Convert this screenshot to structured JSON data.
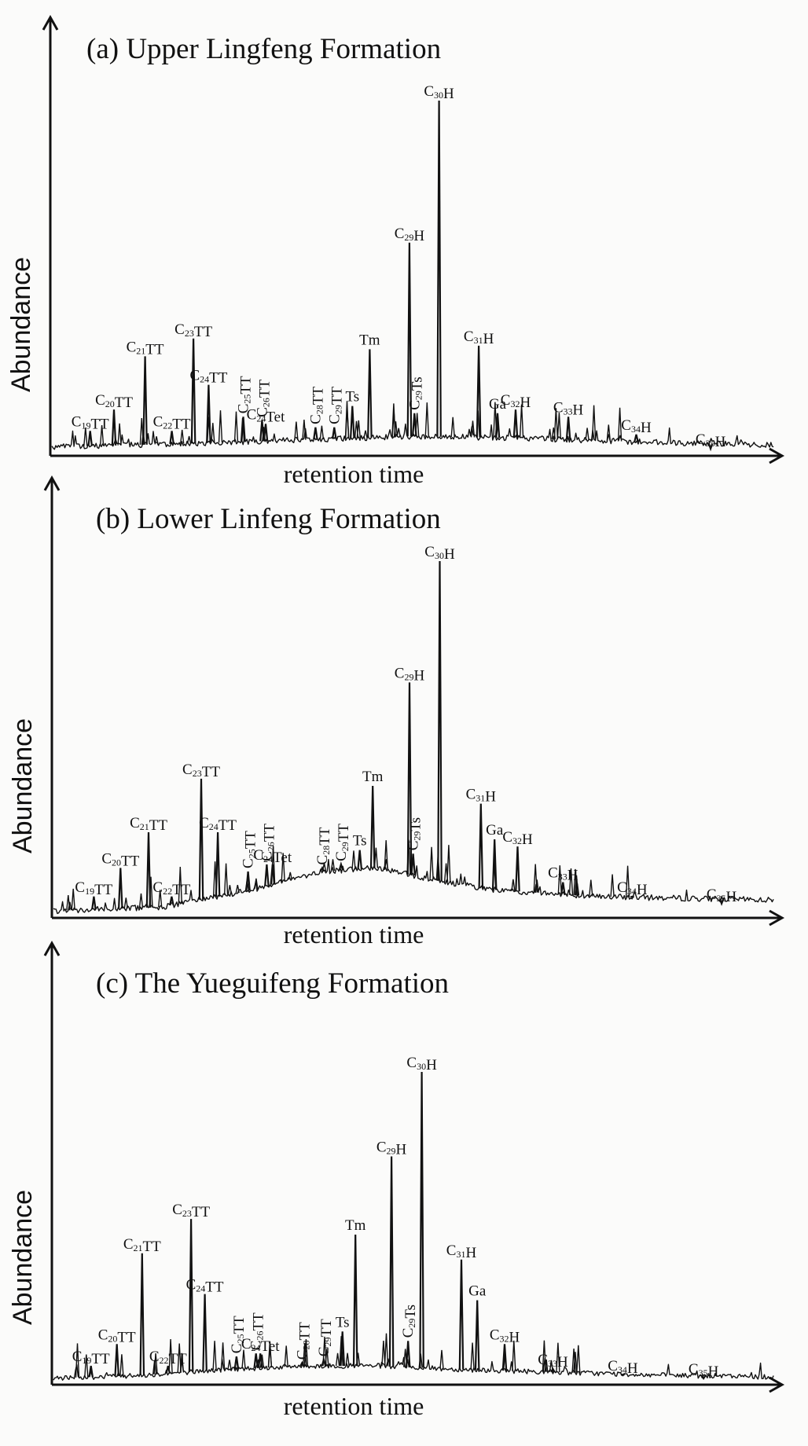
{
  "chart_data": [
    {
      "type": "line",
      "title": "(a) Upper  Lingfeng Formation",
      "xlabel": "retention time",
      "ylabel": "Abundance",
      "x_range": [
        0,
        100
      ],
      "ylim": [
        0,
        100
      ],
      "baseline": [
        [
          0,
          2.5
        ],
        [
          20,
          3.5
        ],
        [
          35,
          4.5
        ],
        [
          50,
          5.5
        ],
        [
          65,
          5
        ],
        [
          80,
          4
        ],
        [
          100,
          3
        ]
      ],
      "peaks": [
        {
          "name": "C19TT",
          "label": [
            [
              "C",
              "19",
              "TT"
            ]
          ],
          "x": 5.3,
          "y": 7
        },
        {
          "name": "C20TT",
          "label": [
            [
              "C",
              "20",
              "TT"
            ]
          ],
          "x": 8.6,
          "y": 13
        },
        {
          "name": "C21TT",
          "label": [
            [
              "C",
              "21",
              "TT"
            ]
          ],
          "x": 12.9,
          "y": 28
        },
        {
          "name": "C22TT",
          "label": [
            [
              "C",
              "22",
              "TT"
            ]
          ],
          "x": 16.6,
          "y": 7
        },
        {
          "name": "C23TT",
          "label": [
            [
              "C",
              "23",
              "TT"
            ]
          ],
          "x": 19.6,
          "y": 33
        },
        {
          "name": "C24TT",
          "label": [
            [
              "C",
              "24",
              "TT"
            ]
          ],
          "x": 21.7,
          "y": 20
        },
        {
          "name": "C25TT",
          "label": [
            [
              "C",
              "25",
              "TT"
            ]
          ],
          "rotated": true,
          "x": 26.5,
          "y": 11
        },
        {
          "name": "C26TT",
          "label": [
            [
              "C",
              "26",
              "TT"
            ]
          ],
          "rotated": true,
          "x": 29.1,
          "y": 10
        },
        {
          "name": "C24Tet",
          "label": [
            [
              "C",
              "24",
              "Tet"
            ]
          ],
          "x": 29.6,
          "y": 9
        },
        {
          "name": "C28TT",
          "label": [
            [
              "C",
              "28",
              "TT"
            ]
          ],
          "rotated": true,
          "x": 36.5,
          "y": 8
        },
        {
          "name": "C29TT",
          "label": [
            [
              "C",
              "29",
              "TT"
            ]
          ],
          "rotated": true,
          "x": 39.1,
          "y": 8
        },
        {
          "name": "Ts",
          "label": [
            [
              "",
              "",
              "Ts"
            ]
          ],
          "x": 41.6,
          "y": 14
        },
        {
          "name": "Tm",
          "label": [
            [
              "",
              "",
              "Tm"
            ]
          ],
          "x": 44.0,
          "y": 30
        },
        {
          "name": "C29H",
          "label": [
            [
              "C",
              "29",
              "H"
            ]
          ],
          "x": 49.5,
          "y": 60
        },
        {
          "name": "C29Ts",
          "label": [
            [
              "C",
              "29",
              "Ts"
            ]
          ],
          "rotated": true,
          "x": 50.2,
          "y": 12
        },
        {
          "name": "C30H",
          "label": [
            [
              "C",
              "30",
              "H"
            ]
          ],
          "x": 53.6,
          "y": 100
        },
        {
          "name": "C31H",
          "label": [
            [
              "C",
              "31",
              "H"
            ]
          ],
          "x": 59.1,
          "y": 31
        },
        {
          "name": "Ga",
          "label": [
            [
              "",
              "",
              "Ga"
            ]
          ],
          "x": 61.7,
          "y": 12
        },
        {
          "name": "C32H",
          "label": [
            [
              "C",
              "32",
              "H"
            ]
          ],
          "x": 64.2,
          "y": 13
        },
        {
          "name": "C33H",
          "label": [
            [
              "C",
              "33",
              "H"
            ]
          ],
          "x": 71.5,
          "y": 11
        },
        {
          "name": "C34H",
          "label": [
            [
              "C",
              "34",
              "H"
            ]
          ],
          "x": 80.9,
          "y": 6
        },
        {
          "name": "C35H",
          "label": [
            [
              "C",
              "35",
              "H"
            ]
          ],
          "x": 91.2,
          "y": 2
        }
      ]
    },
    {
      "type": "line",
      "title": "(b) Lower Linfeng Formation",
      "xlabel": "retention time",
      "ylabel": "Abundance",
      "x_range": [
        0,
        100
      ],
      "ylim": [
        0,
        100
      ],
      "baseline": [
        [
          0,
          2
        ],
        [
          15,
          3
        ],
        [
          28,
          8
        ],
        [
          37,
          13
        ],
        [
          45,
          14
        ],
        [
          52,
          11
        ],
        [
          60,
          8
        ],
        [
          75,
          6
        ],
        [
          100,
          5
        ]
      ],
      "peaks": [
        {
          "name": "C19TT",
          "label": [
            [
              "C",
              "19",
              "TT"
            ]
          ],
          "x": 5.6,
          "y": 6
        },
        {
          "name": "C20TT",
          "label": [
            [
              "C",
              "20",
              "TT"
            ]
          ],
          "x": 9.3,
          "y": 14
        },
        {
          "name": "C21TT",
          "label": [
            [
              "C",
              "21",
              "TT"
            ]
          ],
          "x": 13.2,
          "y": 24
        },
        {
          "name": "C22TT",
          "label": [
            [
              "C",
              "22",
              "TT"
            ]
          ],
          "x": 16.4,
          "y": 6
        },
        {
          "name": "C23TT",
          "label": [
            [
              "C",
              "23",
              "TT"
            ]
          ],
          "x": 20.5,
          "y": 39
        },
        {
          "name": "C24TT",
          "label": [
            [
              "C",
              "24",
              "TT"
            ]
          ],
          "x": 22.8,
          "y": 24
        },
        {
          "name": "C25TT",
          "label": [
            [
              "C",
              "25",
              "TT"
            ]
          ],
          "rotated": true,
          "x": 27.0,
          "y": 13
        },
        {
          "name": "C26TT",
          "label": [
            [
              "C",
              "26",
              "TT"
            ]
          ],
          "rotated": true,
          "x": 29.6,
          "y": 15
        },
        {
          "name": "C24Tet",
          "label": [
            [
              "C",
              "24",
              "Tet"
            ]
          ],
          "x": 30.4,
          "y": 15
        },
        {
          "name": "C28TT",
          "label": [
            [
              "C",
              "28",
              "TT"
            ]
          ],
          "rotated": true,
          "x": 37.3,
          "y": 14
        },
        {
          "name": "C29TT",
          "label": [
            [
              "C",
              "29",
              "TT"
            ]
          ],
          "rotated": true,
          "x": 39.9,
          "y": 15
        },
        {
          "name": "Ts",
          "label": [
            [
              "",
              "",
              "Ts"
            ]
          ],
          "x": 42.5,
          "y": 19
        },
        {
          "name": "Tm",
          "label": [
            [
              "",
              "",
              "Tm"
            ]
          ],
          "x": 44.3,
          "y": 37
        },
        {
          "name": "C29H",
          "label": [
            [
              "C",
              "29",
              "H"
            ]
          ],
          "x": 49.4,
          "y": 66
        },
        {
          "name": "C29Ts",
          "label": [
            [
              "C",
              "29",
              "Ts"
            ]
          ],
          "rotated": true,
          "x": 49.9,
          "y": 18
        },
        {
          "name": "C30H",
          "label": [
            [
              "C",
              "30",
              "H"
            ]
          ],
          "x": 53.6,
          "y": 100
        },
        {
          "name": "C31H",
          "label": [
            [
              "C",
              "31",
              "H"
            ]
          ],
          "x": 59.3,
          "y": 32
        },
        {
          "name": "Ga",
          "label": [
            [
              "",
              "",
              "Ga"
            ]
          ],
          "x": 61.2,
          "y": 22
        },
        {
          "name": "C32H",
          "label": [
            [
              "C",
              "32",
              "H"
            ]
          ],
          "x": 64.4,
          "y": 20
        },
        {
          "name": "C33H",
          "label": [
            [
              "C",
              "33",
              "H"
            ]
          ],
          "x": 70.7,
          "y": 10
        },
        {
          "name": "C34H",
          "label": [
            [
              "C",
              "34",
              "H"
            ]
          ],
          "x": 80.3,
          "y": 6
        },
        {
          "name": "C35H",
          "label": [
            [
              "C",
              "35",
              "H"
            ]
          ],
          "x": 92.7,
          "y": 4
        }
      ]
    },
    {
      "type": "line",
      "title": "(c) The Yueguifeng Formation",
      "xlabel": "retention time",
      "ylabel": "Abundance",
      "x_range": [
        0,
        100
      ],
      "ylim": [
        0,
        100
      ],
      "baseline": [
        [
          0,
          2
        ],
        [
          12,
          3
        ],
        [
          25,
          5
        ],
        [
          35,
          6
        ],
        [
          45,
          6
        ],
        [
          55,
          5
        ],
        [
          70,
          4
        ],
        [
          85,
          3
        ],
        [
          100,
          2.5
        ]
      ],
      "peaks": [
        {
          "name": "C19TT",
          "label": [
            [
              "C",
              "19",
              "TT"
            ]
          ],
          "x": 5.2,
          "y": 6
        },
        {
          "name": "C20TT",
          "label": [
            [
              "C",
              "20",
              "TT"
            ]
          ],
          "x": 8.8,
          "y": 13
        },
        {
          "name": "C21TT",
          "label": [
            [
              "C",
              "21",
              "TT"
            ]
          ],
          "x": 12.3,
          "y": 42
        },
        {
          "name": "C22TT",
          "label": [
            [
              "C",
              "22",
              "TT"
            ]
          ],
          "x": 15.9,
          "y": 6
        },
        {
          "name": "C23TT",
          "label": [
            [
              "C",
              "23",
              "TT"
            ]
          ],
          "x": 19.1,
          "y": 53
        },
        {
          "name": "C24TT",
          "label": [
            [
              "C",
              "24",
              "TT"
            ]
          ],
          "x": 21.0,
          "y": 29
        },
        {
          "name": "C25TT",
          "label": [
            [
              "C",
              "25",
              "TT"
            ]
          ],
          "rotated": true,
          "x": 25.4,
          "y": 9
        },
        {
          "name": "C26TT",
          "label": [
            [
              "C",
              "26",
              "TT"
            ]
          ],
          "rotated": true,
          "x": 28.1,
          "y": 10
        },
        {
          "name": "C24Tet",
          "label": [
            [
              "C",
              "24",
              "Tet"
            ]
          ],
          "x": 28.7,
          "y": 10
        },
        {
          "name": "C28TT",
          "label": [
            [
              "C",
              "28",
              "TT"
            ]
          ],
          "rotated": true,
          "x": 34.5,
          "y": 7
        },
        {
          "name": "C29TT",
          "label": [
            [
              "C",
              "29",
              "TT"
            ]
          ],
          "rotated": true,
          "x": 37.5,
          "y": 8
        },
        {
          "name": "Ts",
          "label": [
            [
              "",
              "",
              "Ts"
            ]
          ],
          "x": 40.1,
          "y": 17
        },
        {
          "name": "Tm",
          "label": [
            [
              "",
              "",
              "Tm"
            ]
          ],
          "x": 41.9,
          "y": 48
        },
        {
          "name": "C29H",
          "label": [
            [
              "C",
              "29",
              "H"
            ]
          ],
          "x": 46.9,
          "y": 73
        },
        {
          "name": "C29Ts",
          "label": [
            [
              "C",
              "29",
              "Ts"
            ]
          ],
          "rotated": true,
          "x": 49.2,
          "y": 14
        },
        {
          "name": "C30H",
          "label": [
            [
              "C",
              "30",
              "H"
            ]
          ],
          "x": 51.1,
          "y": 100
        },
        {
          "name": "C31H",
          "label": [
            [
              "C",
              "31",
              "H"
            ]
          ],
          "x": 56.6,
          "y": 40
        },
        {
          "name": "Ga",
          "label": [
            [
              "",
              "",
              "Ga"
            ]
          ],
          "x": 58.8,
          "y": 27
        },
        {
          "name": "C32H",
          "label": [
            [
              "C",
              "32",
              "H"
            ]
          ],
          "x": 62.6,
          "y": 13
        },
        {
          "name": "C33H",
          "label": [
            [
              "C",
              "33",
              "H"
            ]
          ],
          "x": 69.3,
          "y": 5
        },
        {
          "name": "C34H",
          "label": [
            [
              "C",
              "34",
              "H"
            ]
          ],
          "x": 79.0,
          "y": 3
        },
        {
          "name": "C35H",
          "label": [
            [
              "C",
              "35",
              "H"
            ]
          ],
          "x": 90.2,
          "y": 2
        }
      ]
    }
  ]
}
